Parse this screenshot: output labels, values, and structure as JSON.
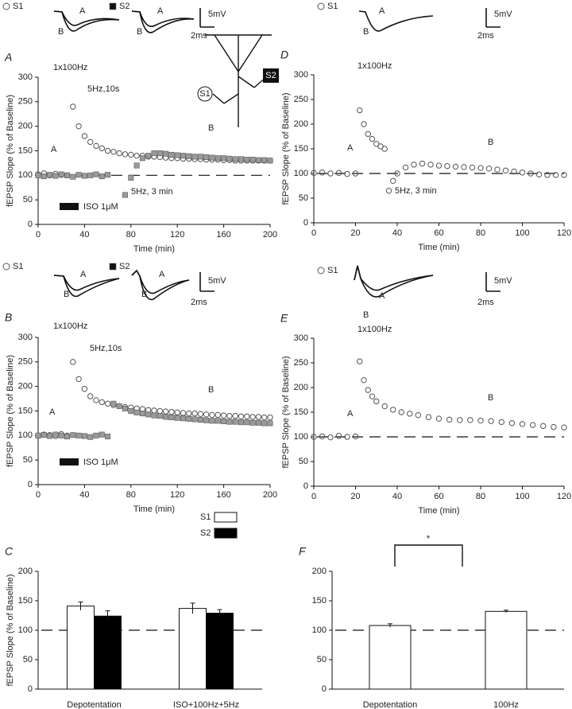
{
  "chart_data": [
    {
      "type": "scatter",
      "panel": "A",
      "ylabel": "fEPSP Slope (% of Baseline)",
      "xlabel": "Time (min)",
      "xlim": [
        0,
        200
      ],
      "ylim": [
        0,
        300
      ],
      "xticks": [
        0,
        40,
        80,
        120,
        160,
        200
      ],
      "yticks": [
        0,
        50,
        100,
        150,
        200,
        250,
        300
      ],
      "hline": 100,
      "annotations": [
        "1x100Hz",
        "5Hz,10s",
        "A",
        "B",
        "5Hz, 3 min",
        "ISO 1μM"
      ],
      "inset_labels": [
        "A",
        "B",
        "A",
        "B",
        "5mV",
        "2ms"
      ],
      "series": [
        {
          "name": "S1",
          "color": "#555555",
          "marker": "circle",
          "x": [
            0,
            5,
            10,
            15,
            20,
            25,
            30,
            35,
            40,
            45,
            50,
            55,
            60,
            65,
            70,
            75,
            80,
            85,
            90,
            95,
            100,
            105,
            110,
            115,
            120,
            125,
            130,
            135,
            140,
            145,
            150,
            155,
            160,
            165,
            170,
            175,
            180,
            185,
            190,
            195,
            200
          ],
          "values": [
            102,
            104,
            100,
            103,
            101,
            100,
            240,
            200,
            180,
            168,
            160,
            155,
            150,
            148,
            145,
            143,
            142,
            140,
            140,
            138,
            138,
            137,
            136,
            135,
            135,
            134,
            134,
            133,
            133,
            132,
            132,
            132,
            131,
            131,
            130,
            130,
            130,
            130,
            130,
            130,
            130
          ]
        },
        {
          "name": "S2",
          "color": "#9a9a9a",
          "marker": "square",
          "x": [
            0,
            5,
            10,
            15,
            20,
            25,
            30,
            35,
            40,
            45,
            50,
            55,
            60,
            75,
            80,
            85,
            90,
            95,
            100,
            105,
            110,
            115,
            120,
            125,
            130,
            135,
            140,
            145,
            150,
            155,
            160,
            165,
            170,
            175,
            180,
            185,
            190,
            195,
            200
          ],
          "values": [
            100,
            98,
            101,
            99,
            102,
            100,
            97,
            101,
            99,
            100,
            102,
            98,
            101,
            60,
            95,
            120,
            135,
            140,
            145,
            145,
            144,
            142,
            141,
            140,
            139,
            138,
            138,
            137,
            136,
            135,
            135,
            134,
            133,
            133,
            132,
            132,
            131,
            131,
            130
          ]
        }
      ]
    },
    {
      "type": "scatter",
      "panel": "B",
      "ylabel": "fEPSP Slope (% of Baseline)",
      "xlabel": "Time (min)",
      "xlim": [
        0,
        200
      ],
      "ylim": [
        0,
        300
      ],
      "xticks": [
        0,
        40,
        80,
        120,
        160,
        200
      ],
      "yticks": [
        0,
        50,
        100,
        150,
        200,
        250,
        300
      ],
      "annotations": [
        "1x100Hz",
        "5Hz,10s",
        "A",
        "B",
        "ISO 1μM"
      ],
      "inset_labels": [
        "A",
        "B",
        "A",
        "B",
        "5mV",
        "2ms"
      ],
      "series": [
        {
          "name": "S1",
          "color": "#555555",
          "marker": "circle",
          "x": [
            0,
            5,
            10,
            15,
            20,
            25,
            30,
            35,
            40,
            45,
            50,
            55,
            60,
            65,
            70,
            75,
            80,
            85,
            90,
            95,
            100,
            105,
            110,
            115,
            120,
            125,
            130,
            135,
            140,
            145,
            150,
            155,
            160,
            165,
            170,
            175,
            180,
            185,
            190,
            195,
            200
          ],
          "values": [
            100,
            102,
            101,
            99,
            103,
            100,
            250,
            215,
            195,
            180,
            172,
            168,
            165,
            162,
            160,
            158,
            157,
            155,
            154,
            152,
            151,
            150,
            149,
            148,
            147,
            146,
            145,
            145,
            144,
            143,
            142,
            142,
            141,
            140,
            140,
            139,
            139,
            138,
            138,
            137,
            137
          ]
        },
        {
          "name": "S2",
          "color": "#9a9a9a",
          "marker": "square",
          "x": [
            0,
            5,
            10,
            15,
            20,
            25,
            30,
            35,
            40,
            45,
            50,
            55,
            60,
            65,
            70,
            75,
            80,
            85,
            90,
            95,
            100,
            105,
            110,
            115,
            120,
            125,
            130,
            135,
            140,
            145,
            150,
            155,
            160,
            165,
            170,
            175,
            180,
            185,
            190,
            195,
            200
          ],
          "values": [
            100,
            101,
            99,
            102,
            100,
            98,
            101,
            100,
            99,
            97,
            100,
            102,
            98,
            165,
            160,
            155,
            150,
            147,
            145,
            143,
            141,
            140,
            138,
            137,
            136,
            135,
            134,
            133,
            132,
            131,
            130,
            130,
            129,
            128,
            128,
            127,
            127,
            126,
            126,
            125,
            125
          ]
        }
      ]
    },
    {
      "type": "bar",
      "panel": "C",
      "ylabel": "fEPSP Slope (% of Baseline)",
      "ylim": [
        0,
        200
      ],
      "yticks": [
        0,
        50,
        100,
        150,
        200
      ],
      "hline": 100,
      "categories": [
        "Depotentation",
        "ISO+100Hz+5Hz"
      ],
      "series": [
        {
          "name": "S1",
          "color": "#ffffff",
          "values": [
            141,
            137
          ],
          "errors": [
            7,
            9
          ]
        },
        {
          "name": "S2",
          "color": "#000000",
          "values": [
            124,
            129
          ],
          "errors": [
            9,
            6
          ]
        }
      ]
    },
    {
      "type": "scatter",
      "panel": "D",
      "ylabel": "fEPSP Slope (% of Baseline)",
      "xlabel": "Time (min)",
      "xlim": [
        0,
        120
      ],
      "ylim": [
        0,
        300
      ],
      "xticks": [
        0,
        20,
        40,
        60,
        80,
        100,
        120
      ],
      "yticks": [
        0,
        50,
        100,
        150,
        200,
        250,
        300
      ],
      "hline": 100,
      "annotations": [
        "1x100Hz",
        "A",
        "B",
        "5Hz, 3 min"
      ],
      "inset_labels": [
        "A",
        "B",
        "5mV",
        "2ms"
      ],
      "series": [
        {
          "name": "S1",
          "color": "#555555",
          "marker": "circle",
          "x": [
            0,
            4,
            8,
            12,
            16,
            20,
            22,
            24,
            26,
            28,
            30,
            32,
            34,
            36,
            38,
            40,
            44,
            48,
            52,
            56,
            60,
            64,
            68,
            72,
            76,
            80,
            84,
            88,
            92,
            96,
            100,
            104,
            108,
            112,
            116,
            120
          ],
          "values": [
            101,
            102,
            100,
            101,
            99,
            100,
            228,
            200,
            180,
            170,
            160,
            155,
            150,
            65,
            85,
            100,
            112,
            118,
            120,
            118,
            116,
            115,
            114,
            113,
            112,
            111,
            110,
            108,
            106,
            104,
            102,
            100,
            98,
            97,
            97,
            97
          ]
        }
      ]
    },
    {
      "type": "scatter",
      "panel": "E",
      "ylabel": "fEPSP Slope (% of Baseline)",
      "xlabel": "Time (min)",
      "xlim": [
        0,
        120
      ],
      "ylim": [
        0,
        300
      ],
      "xticks": [
        0,
        20,
        40,
        60,
        80,
        100,
        120
      ],
      "yticks": [
        0,
        50,
        100,
        150,
        200,
        250,
        300
      ],
      "hline": 100,
      "annotations": [
        "1x100Hz",
        "A",
        "B"
      ],
      "inset_labels": [
        "A",
        "B",
        "5mV",
        "2ms"
      ],
      "series": [
        {
          "name": "S1",
          "color": "#555555",
          "marker": "circle",
          "x": [
            0,
            4,
            8,
            12,
            16,
            20,
            22,
            24,
            26,
            28,
            30,
            34,
            38,
            42,
            46,
            50,
            55,
            60,
            65,
            70,
            75,
            80,
            85,
            90,
            95,
            100,
            105,
            110,
            115,
            120
          ],
          "values": [
            100,
            101,
            99,
            102,
            100,
            101,
            253,
            215,
            195,
            182,
            172,
            162,
            155,
            150,
            147,
            144,
            140,
            137,
            135,
            134,
            134,
            133,
            132,
            130,
            128,
            126,
            124,
            122,
            120,
            119
          ]
        }
      ]
    },
    {
      "type": "bar",
      "panel": "F",
      "ylim": [
        0,
        200
      ],
      "yticks": [
        0,
        50,
        100,
        150,
        200
      ],
      "hline": 100,
      "categories": [
        "Depotentation",
        "100Hz"
      ],
      "annotations": [
        "*"
      ],
      "series": [
        {
          "color": "#ffffff",
          "values": [
            108,
            132
          ],
          "errors": [
            3,
            2
          ]
        }
      ]
    }
  ]
}
